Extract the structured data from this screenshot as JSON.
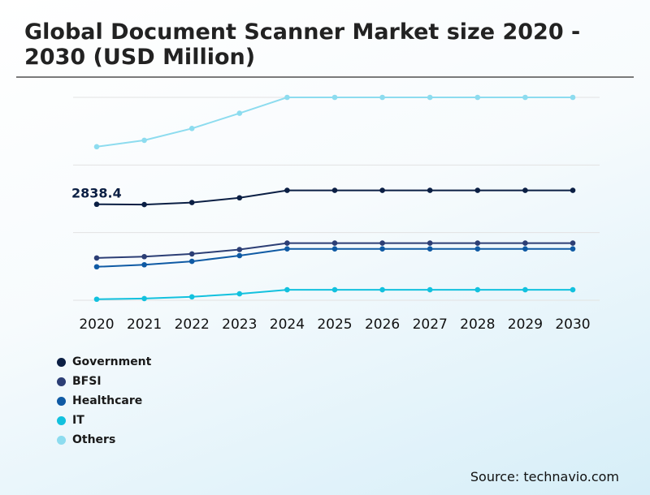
{
  "title": "Global Document Scanner Market size 2020 - 2030 (USD Million)",
  "source": "Source: technavio.com",
  "chart_data": {
    "type": "line",
    "title": "Global Document Scanner Market size 2020 - 2030 (USD Million)",
    "x": [
      "2020",
      "2021",
      "2022",
      "2023",
      "2024",
      "2025",
      "2026",
      "2027",
      "2028",
      "2029",
      "2030"
    ],
    "ylim": [
      0,
      6000
    ],
    "grid": true,
    "legend_position": "bottom-left",
    "annotation": {
      "text": "2838.4",
      "series": "Government",
      "x": "2020"
    },
    "series": [
      {
        "name": "Government",
        "color": "#0b1f44",
        "values": [
          2838.4,
          2830,
          2890,
          3030,
          3250,
          3250,
          3250,
          3250,
          3250,
          3250,
          3250
        ]
      },
      {
        "name": "BFSI",
        "color": "#2c3e75",
        "values": [
          1250,
          1290,
          1370,
          1500,
          1690,
          1690,
          1690,
          1690,
          1690,
          1690,
          1690
        ]
      },
      {
        "name": "Healthcare",
        "color": "#0f5aa4",
        "values": [
          990,
          1050,
          1150,
          1320,
          1520,
          1520,
          1520,
          1520,
          1520,
          1520,
          1520
        ]
      },
      {
        "name": "IT",
        "color": "#12c1de",
        "values": [
          30,
          50,
          100,
          190,
          310,
          310,
          310,
          310,
          310,
          310,
          310
        ]
      },
      {
        "name": "Others",
        "color": "#8ddcef",
        "values": [
          4540,
          4730,
          5080,
          5530,
          6000,
          6000,
          6000,
          6000,
          6000,
          6000,
          6000
        ]
      }
    ]
  }
}
